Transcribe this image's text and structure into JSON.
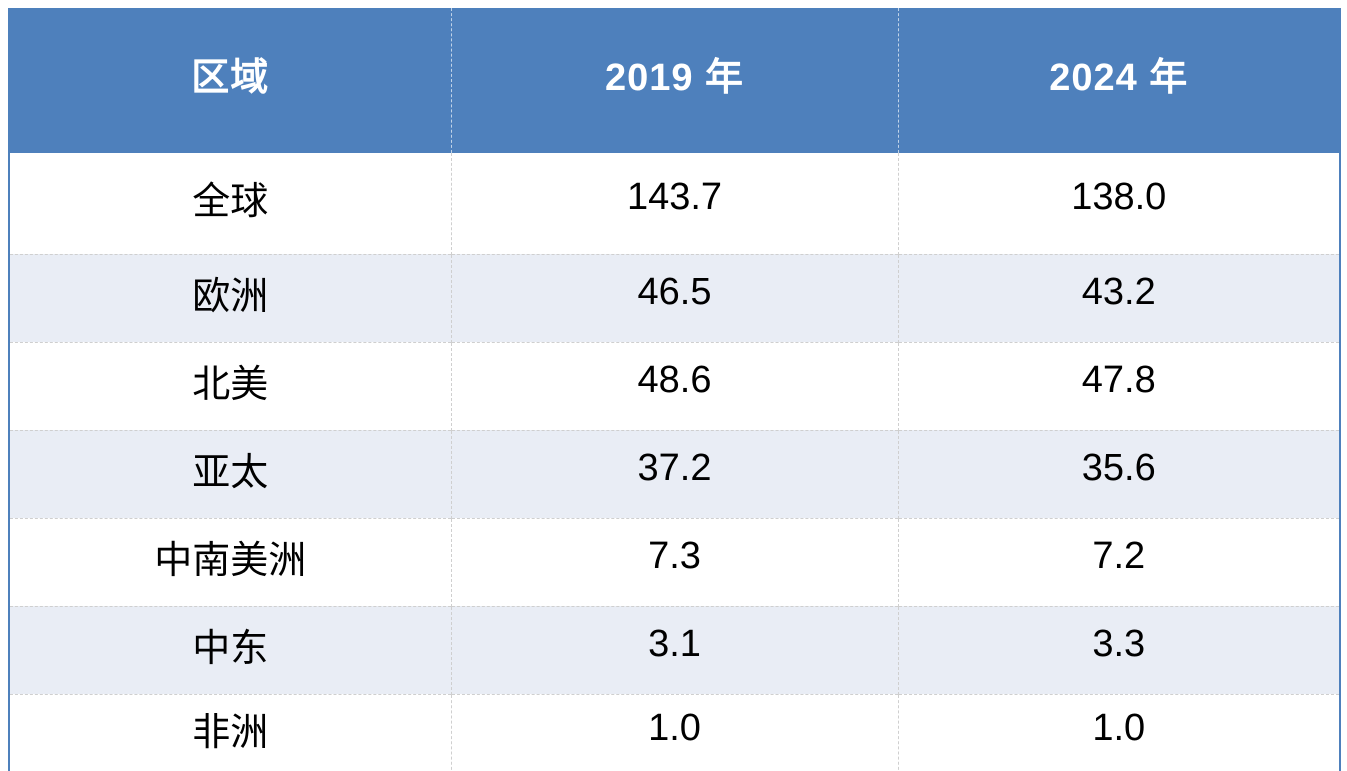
{
  "table": {
    "columns": [
      "区域",
      "2019 年",
      "2024 年"
    ],
    "rows": [
      {
        "region": "全球",
        "v2019": "143.7",
        "v2024": "138.0"
      },
      {
        "region": "欧洲",
        "v2019": "46.5",
        "v2024": "43.2"
      },
      {
        "region": "北美",
        "v2019": "48.6",
        "v2024": "47.8"
      },
      {
        "region": "亚太",
        "v2019": "37.2",
        "v2024": "35.6"
      },
      {
        "region": "中南美洲",
        "v2019": "7.3",
        "v2024": "7.2"
      },
      {
        "region": "中东",
        "v2019": "3.1",
        "v2024": "3.3"
      },
      {
        "region": "非洲",
        "v2019": "1.0",
        "v2024": "1.0"
      }
    ]
  },
  "colors": {
    "header_bg": "#4E80BC",
    "header_text": "#FFFFFF",
    "alt_row_bg": "#E9EDF5",
    "row_bg": "#FFFFFF",
    "outer_border": "#4E80BC",
    "grid_dashed": "#CFCFCF",
    "body_text": "#000000"
  },
  "chart_data": {
    "type": "table",
    "title": "",
    "columns": [
      "区域",
      "2019 年",
      "2024 年"
    ],
    "categories": [
      "全球",
      "欧洲",
      "北美",
      "亚太",
      "中南美洲",
      "中东",
      "非洲"
    ],
    "series": [
      {
        "name": "2019 年",
        "values": [
          143.7,
          46.5,
          48.6,
          37.2,
          7.3,
          3.1,
          1.0
        ]
      },
      {
        "name": "2024 年",
        "values": [
          138.0,
          43.2,
          47.8,
          35.6,
          7.2,
          3.3,
          1.0
        ]
      }
    ],
    "layout_hints": {
      "header_fill": "#4E80BC",
      "banded_rows": true,
      "grid": "dashed-inner, solid-blue-outer"
    }
  }
}
